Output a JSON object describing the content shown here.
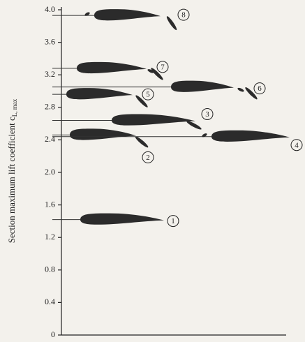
{
  "chart_data": {
    "type": "airfoil",
    "ylabel": "Section maximum lift coefficient c",
    "ylabel_subscript": "L, max",
    "categories": [
      "1",
      "2",
      "3",
      "4",
      "5",
      "6",
      "7",
      "8"
    ],
    "values": [
      1.42,
      2.46,
      2.64,
      2.44,
      2.96,
      3.05,
      3.28,
      3.93
    ],
    "color": "#2b2b2b",
    "ylim": [
      0,
      4.0
    ],
    "yticks": [
      0,
      0.4,
      0.8,
      1.2,
      1.6,
      {
        "value": 2,
        "label": "2.0"
      },
      2.4,
      2.8,
      3.2,
      3.6,
      {
        "value": 4,
        "label": "4.0"
      }
    ]
  }
}
